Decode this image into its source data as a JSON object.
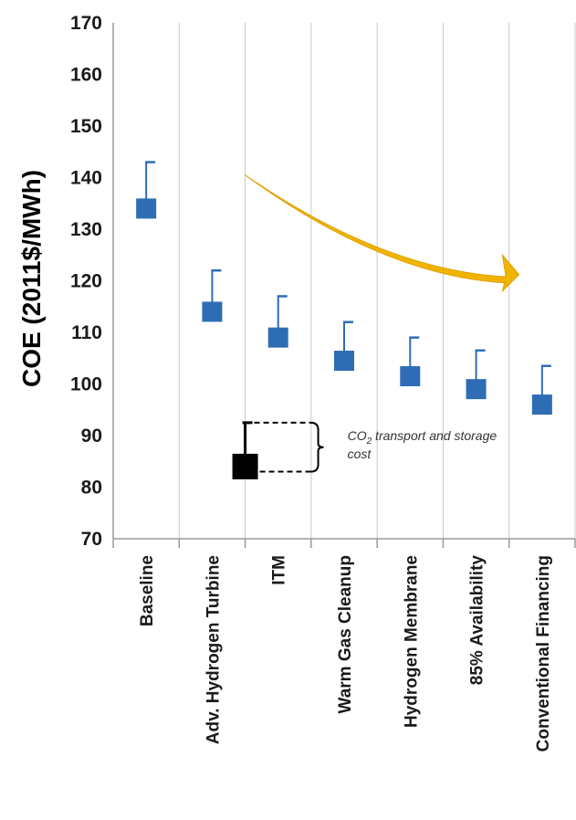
{
  "chart_data": {
    "type": "scatter",
    "ylabel": "COE (2011$/MWh)",
    "ylim": [
      70,
      170
    ],
    "yticks": [
      70,
      80,
      90,
      100,
      110,
      120,
      130,
      140,
      150,
      160,
      170
    ],
    "categories": [
      "Baseline",
      "Adv. Hydrogen Turbine",
      "ITM",
      "Warm Gas Cleanup",
      "Hydrogen Membrane",
      "85% Availability",
      "Conventional Financing"
    ],
    "series": [
      {
        "values": [
          134,
          114,
          109,
          104.5,
          101.5,
          99,
          96
        ],
        "error_upper": [
          143,
          122,
          117,
          112,
          109,
          106.5,
          103.5
        ]
      }
    ],
    "legend": {
      "marker_value": 84,
      "marker_upper": 92.5,
      "text_prefix": "CO",
      "text_sub": "2",
      "text_rest": " transport and storage",
      "text_line2": "cost"
    },
    "grid": "vertical",
    "colors": {
      "marker": "#2e6db4",
      "error": "#2e6db4",
      "arrow": "#f0b400",
      "grid": "#c8c8c8",
      "legend_marker": "#000000"
    }
  }
}
